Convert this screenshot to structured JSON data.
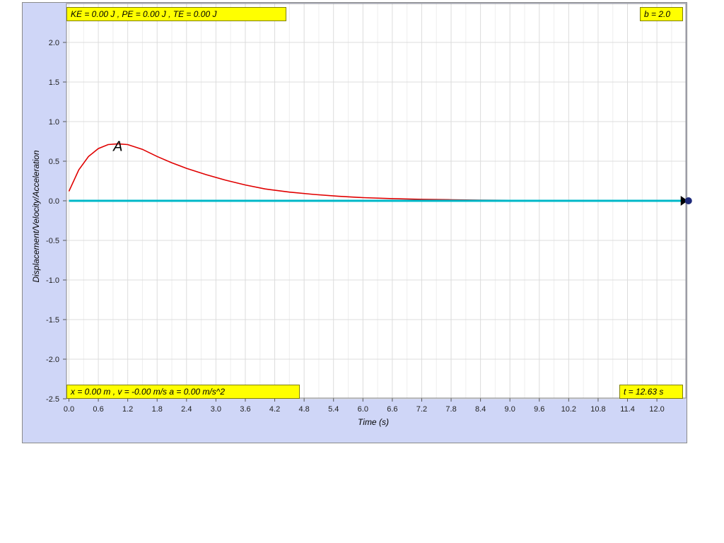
{
  "readouts": {
    "energy": "KE = 0.00 J , PE = 0.00 J , TE = 0.00 J",
    "damping": "b = 2.0",
    "state": "x = 0.00 m , v = -0.00 m/s a = 0.00 m/s^2",
    "time": "t = 12.63 s"
  },
  "colors": {
    "frame_bg": "#cfd6f7",
    "readout_bg": "#ffff00",
    "displacement": "#e00000",
    "velocity_acceleration": "#00b8c8",
    "marker": "#000000"
  },
  "chart_data": {
    "type": "line",
    "xlabel": "Time (s)",
    "ylabel": "Displacement/Velocity/Acceleration",
    "xlim": [
      0,
      12.63
    ],
    "ylim": [
      -2.5,
      2.5
    ],
    "grid": true,
    "x_ticks": [
      "0.0",
      "0.6",
      "1.2",
      "1.8",
      "2.4",
      "3.0",
      "3.6",
      "4.2",
      "4.8",
      "5.4",
      "6.0",
      "6.6",
      "7.2",
      "7.8",
      "8.4",
      "9.0",
      "9.6",
      "10.2",
      "10.8",
      "11.4",
      "12.0"
    ],
    "y_ticks": [
      "2.0",
      "1.5",
      "1.0",
      "0.5",
      "0.0",
      "-0.5",
      "-1.0",
      "-1.5",
      "-2.0",
      "-2.5"
    ],
    "annotation": {
      "text": "A",
      "x": 1.0,
      "y": 0.63
    },
    "series": [
      {
        "color": "#e00000",
        "x": [
          0,
          0.2,
          0.4,
          0.6,
          0.8,
          1.0,
          1.2,
          1.5,
          1.8,
          2.1,
          2.4,
          2.8,
          3.2,
          3.6,
          4.0,
          4.5,
          5.0,
          5.5,
          6.0,
          6.6,
          7.2,
          7.8,
          8.4,
          9.0,
          9.6,
          10.2,
          10.8,
          11.4,
          12.0,
          12.63
        ],
        "y": [
          0.12,
          0.39,
          0.56,
          0.66,
          0.71,
          0.72,
          0.71,
          0.65,
          0.56,
          0.48,
          0.41,
          0.33,
          0.26,
          0.2,
          0.15,
          0.11,
          0.08,
          0.057,
          0.04,
          0.028,
          0.019,
          0.013,
          0.009,
          0.006,
          0.004,
          0.003,
          0.002,
          0.001,
          0.001,
          0.0
        ]
      },
      {
        "color": "#00b8c8",
        "x": [
          0,
          12.63
        ],
        "y": [
          0,
          0
        ]
      }
    ]
  }
}
